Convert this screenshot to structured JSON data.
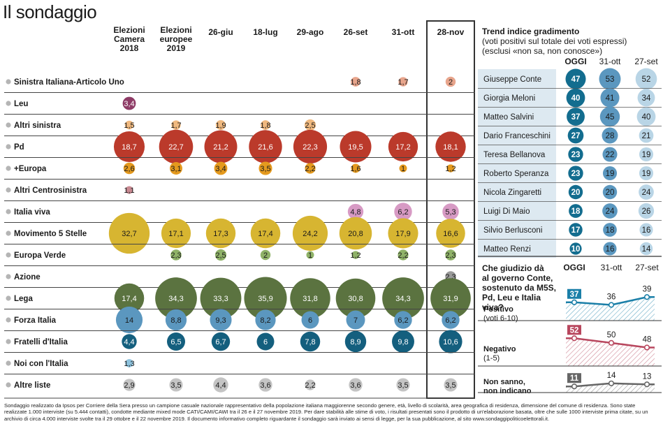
{
  "title": "Il sondaggio",
  "chart_data": [
    {
      "type": "bubble-table",
      "columns": [
        {
          "label": "Elezioni Camera 2018",
          "lines": [
            "Elezioni",
            "Camera",
            "2018"
          ]
        },
        {
          "label": "Elezioni europee 2019",
          "lines": [
            "Elezioni",
            "europee",
            "2019"
          ]
        },
        {
          "label": "26-giu",
          "lines": [
            "26-giu"
          ]
        },
        {
          "label": "18-lug",
          "lines": [
            "18-lug"
          ]
        },
        {
          "label": "29-ago",
          "lines": [
            "29-ago"
          ]
        },
        {
          "label": "26-set",
          "lines": [
            "26-set"
          ]
        },
        {
          "label": "31-ott",
          "lines": [
            "31-ott"
          ]
        },
        {
          "label": "28-nov",
          "lines": [
            "28-nov"
          ]
        }
      ],
      "rows": [
        {
          "name": "Sinistra Italiana-Articolo Uno",
          "color": "#e8a58c",
          "values": [
            "",
            "",
            "",
            "",
            "",
            "1,8",
            "1,7",
            "2"
          ]
        },
        {
          "name": "Leu",
          "color": "#8e3b66",
          "values": [
            "3,4",
            "",
            "",
            "",
            "",
            "",
            "",
            ""
          ]
        },
        {
          "name": "Altri sinistra",
          "color": "#f0b97f",
          "values": [
            "1,5",
            "1,7",
            "1,9",
            "1,8",
            "2,5",
            "",
            "",
            ""
          ]
        },
        {
          "name": "Pd",
          "color": "#bb3a2b",
          "values": [
            "18,7",
            "22,7",
            "21,2",
            "21,6",
            "22,3",
            "19,5",
            "17,2",
            "18,1"
          ]
        },
        {
          "name": "+Europa",
          "color": "#e59a1e",
          "values": [
            "2,6",
            "3,1",
            "3,4",
            "3,5",
            "2,2",
            "1,6",
            "1",
            "1,2"
          ]
        },
        {
          "name": "Altri Centrosinistra",
          "color": "#c98a92",
          "values": [
            "1,1",
            "",
            "",
            "",
            "",
            "",
            "",
            ""
          ]
        },
        {
          "name": "Italia viva",
          "color": "#d79ac4",
          "values": [
            "",
            "",
            "",
            "",
            "",
            "4,8",
            "6,2",
            "5,3"
          ]
        },
        {
          "name": "Movimento 5 Stelle",
          "color": "#d7b531",
          "values": [
            "32,7",
            "17,1",
            "17,3",
            "17,4",
            "24,2",
            "20,8",
            "17,9",
            "16,6"
          ]
        },
        {
          "name": "Europa Verde",
          "color": "#8fb268",
          "values": [
            "",
            "2,3",
            "2,5",
            "2",
            "1",
            "1,2",
            "2,2",
            "2,3"
          ]
        },
        {
          "name": "Azione",
          "color": "#9a9a9a",
          "values": [
            "",
            "",
            "",
            "",
            "",
            "",
            "",
            "2,3"
          ]
        },
        {
          "name": "Lega",
          "color": "#5b7340",
          "values": [
            "17,4",
            "34,3",
            "33,3",
            "35,9",
            "31,8",
            "30,8",
            "34,3",
            "31,9"
          ]
        },
        {
          "name": "Forza Italia",
          "color": "#5b97bf",
          "values": [
            "14",
            "8,8",
            "9,3",
            "8,2",
            "6",
            "7",
            "6,2",
            "6,2"
          ]
        },
        {
          "name": "Fratelli d'Italia",
          "color": "#145f7e",
          "values": [
            "4,4",
            "6,5",
            "6,7",
            "6",
            "7,8",
            "8,9",
            "9,8",
            "10,6"
          ]
        },
        {
          "name": "Noi con l'Italia",
          "color": "#8ec3de",
          "values": [
            "1,3",
            "",
            "",
            "",
            "",
            "",
            "",
            ""
          ]
        },
        {
          "name": "Altre liste",
          "color": "#c4c4c4",
          "values": [
            "2,9",
            "3,5",
            "4,4",
            "3,6",
            "2,2",
            "3,6",
            "3,5",
            "3,5"
          ]
        }
      ]
    },
    {
      "type": "table",
      "title_bold": "Trend indice gradimento",
      "title_rest": [
        "(voti positivi sul totale dei voti espressi)",
        "(esclusi «non sa, non conosce»)"
      ],
      "columns": [
        "OGGI",
        "31-ott",
        "27-set"
      ],
      "rows": [
        {
          "name": "Giuseppe Conte",
          "values": [
            47,
            53,
            52
          ]
        },
        {
          "name": "Giorgia Meloni",
          "values": [
            40,
            41,
            34
          ]
        },
        {
          "name": "Matteo Salvini",
          "values": [
            37,
            45,
            40
          ]
        },
        {
          "name": "Dario Franceschini",
          "values": [
            27,
            28,
            21
          ]
        },
        {
          "name": "Teresa Bellanova",
          "values": [
            23,
            22,
            19
          ]
        },
        {
          "name": "Roberto Speranza",
          "values": [
            23,
            19,
            19
          ]
        },
        {
          "name": "Nicola Zingaretti",
          "values": [
            20,
            20,
            24
          ]
        },
        {
          "name": "Luigi Di Maio",
          "values": [
            18,
            24,
            26
          ]
        },
        {
          "name": "Silvio Berlusconi",
          "values": [
            17,
            18,
            16
          ]
        },
        {
          "name": "Matteo Renzi",
          "values": [
            10,
            16,
            14
          ]
        }
      ]
    },
    {
      "type": "line",
      "title": "Che giudizio dà al governo Conte, sostenuto da M5S, Pd, Leu e Italia viva?",
      "title_lines": [
        "Che giudizio dà",
        "al governo Conte,",
        "sostenuto da M5S,",
        "Pd, Leu e Italia viva?"
      ],
      "x": [
        "OGGI",
        "31-ott",
        "27-set"
      ],
      "series": [
        {
          "name": "Positivo",
          "sub": "(voti 6-10)",
          "color": "#1a7fa8",
          "values": [
            37,
            36,
            39
          ]
        },
        {
          "name": "Negativo",
          "sub": "(1-5)",
          "color": "#b8475e",
          "values": [
            52,
            50,
            48
          ]
        },
        {
          "name": "Non sanno, non indicano",
          "sub": "",
          "lines": [
            "Non sanno,",
            "non indicano"
          ],
          "color": "#666666",
          "values": [
            11,
            14,
            13
          ]
        }
      ]
    }
  ],
  "footnote": "Sondaggio realizzato da Ipsos per Corriere della Sera presso un campione casuale nazionale rappresentativo della popolazione italiana maggiorenne secondo genere, età, livello di scolarità, area geografica di residenza, dimensione del comune di residenza. Sono state realizzate 1.000 interviste (su 5.444 contatti), condotte mediante mixed mode CATI/CAMI/CAWI tra il 26 e il 27 novembre 2019. Per dare stabilità alle stime di voto, i risultati presentati sono il prodotto di un'elaborazione basata, oltre che sulle 1000 interviste prima citate, su un archivio di circa 4.000 interviste svolte tra il 29 ottobre e il 22 novembre 2019. Il documento informativo completo riguardante il sondaggio sarà inviato ai sensi di legge, per la sua pubblicazione, al sito www.sondaggipoliticoelettorali.it."
}
